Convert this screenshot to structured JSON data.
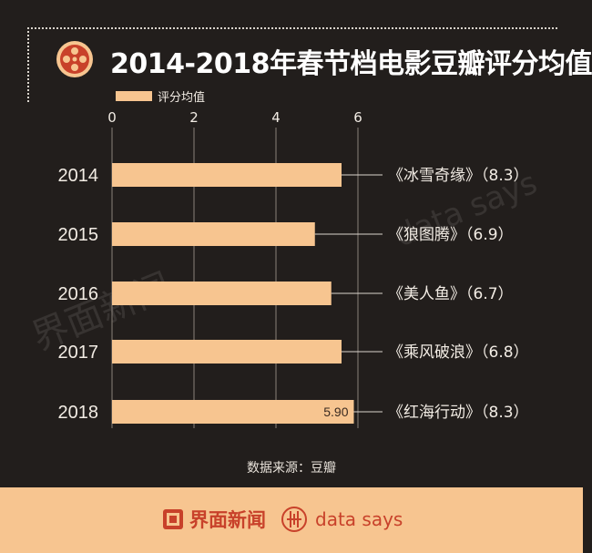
{
  "header": {
    "title": "2014-2018年春节档电影豆瓣评分均值",
    "icon": "film-reel-icon"
  },
  "legend": {
    "label": "评分均值",
    "color": "#f7c590"
  },
  "chart_data": {
    "type": "bar",
    "orientation": "horizontal",
    "title": "2014-2018年春节档电影豆瓣评分均值",
    "categories": [
      "2014",
      "2015",
      "2016",
      "2017",
      "2018"
    ],
    "series": [
      {
        "name": "评分均值",
        "values": [
          5.6,
          4.95,
          5.35,
          5.6,
          5.9
        ]
      }
    ],
    "data_labels": [
      null,
      null,
      null,
      null,
      "5.90"
    ],
    "annotations": [
      "《冰雪奇缘》（8.3）",
      "《狼图腾》（6.9）",
      "《美人鱼》（6.7）",
      "《乘风破浪》（6.8）",
      "《红海行动》（8.3）"
    ],
    "xaxis": {
      "ticks": [
        0,
        2,
        4,
        6
      ],
      "range": [
        0,
        6
      ],
      "position": "top"
    },
    "grid": true,
    "legend_position": "top-left",
    "bar_color": "#f7c590"
  },
  "source": "数据来源：豆瓣",
  "footer": {
    "brand": "界面新闻",
    "secondary": "data says",
    "background": "#f7c590",
    "accent": "#c8412a"
  },
  "watermarks": {
    "brand": "界面新闻",
    "secondary": "data says"
  }
}
